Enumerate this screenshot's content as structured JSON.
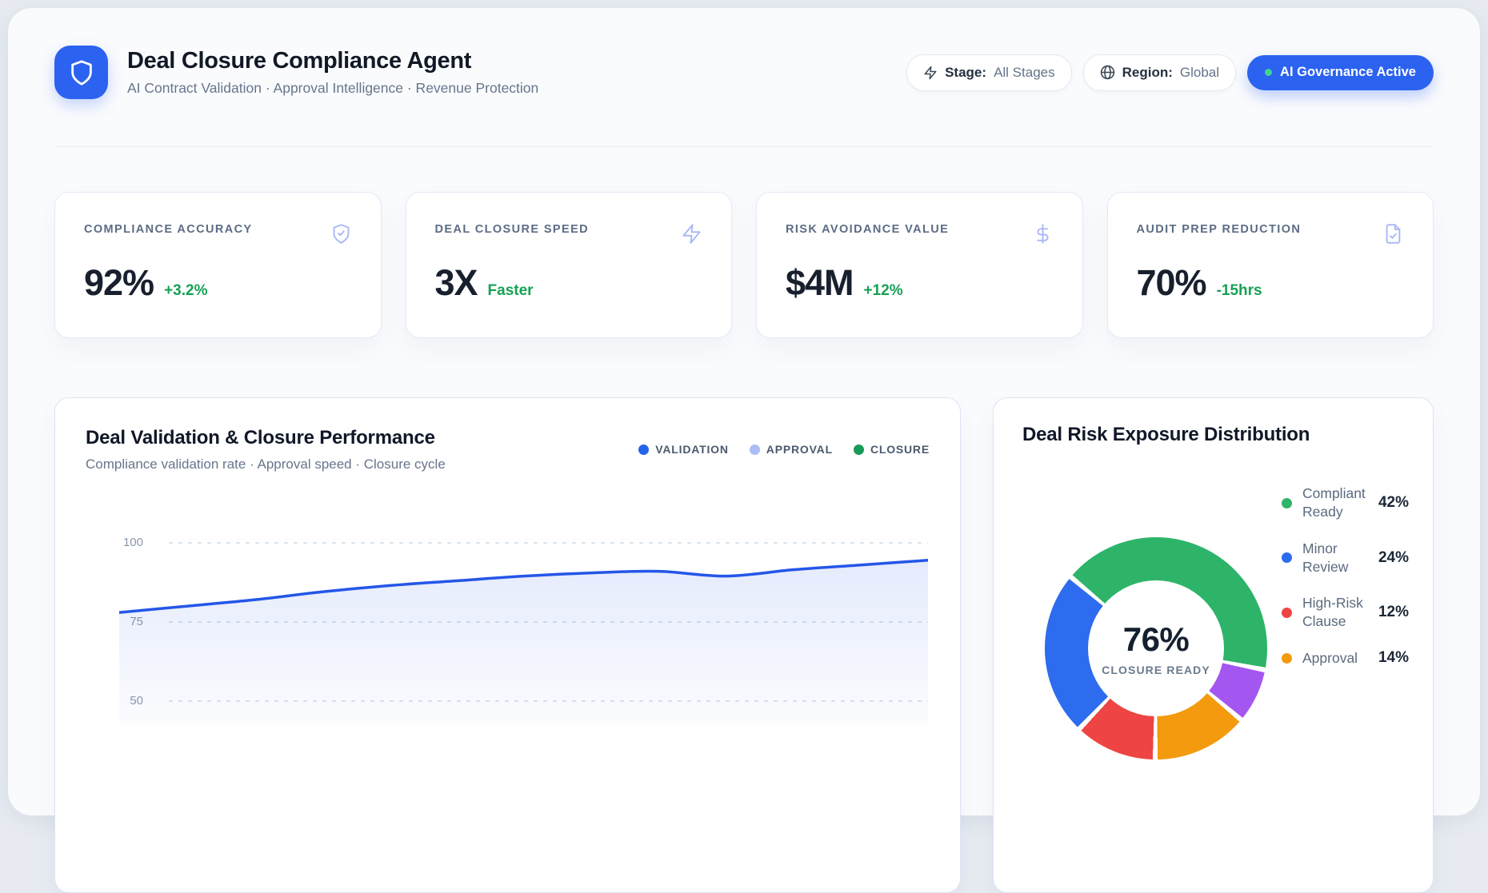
{
  "app": {
    "title": "Deal Closure Compliance Agent",
    "subtitle": "AI Contract Validation · Approval Intelligence · Revenue Protection",
    "accent_blue": "#2b62f0"
  },
  "header_controls": {
    "filters": [
      {
        "icon": "lightning-icon",
        "label": "Stage:",
        "value": "All Stages"
      },
      {
        "icon": "globe-icon",
        "label": "Region:",
        "value": "Global"
      }
    ],
    "status_badge": {
      "label": "AI Governance Active",
      "dot_color": "#42d392",
      "bg": "#2b62f0"
    }
  },
  "kpi_cards": [
    {
      "label": "COMPLIANCE ACCURACY",
      "value": "92%",
      "delta": "+3.2%",
      "icon": "shield-check-icon",
      "delta_color": "#16a155"
    },
    {
      "label": "DEAL CLOSURE SPEED",
      "value": "3X",
      "delta": "Faster",
      "icon": "lightning-icon",
      "delta_color": "#16a155"
    },
    {
      "label": "RISK AVOIDANCE VALUE",
      "value": "$4M",
      "delta": "+12%",
      "icon": "dollar-icon",
      "delta_color": "#16a155"
    },
    {
      "label": "AUDIT PREP REDUCTION",
      "value": "70%",
      "delta": "-15hrs",
      "icon": "document-check-icon",
      "delta_color": "#16a155"
    }
  ],
  "chart_data": [
    {
      "type": "area",
      "title": "Deal Validation & Closure Performance",
      "subtitle": "Compliance validation rate · Approval speed · Closure cycle",
      "legend": [
        {
          "label": "VALIDATION",
          "color": "#2563eb"
        },
        {
          "label": "APPROVAL",
          "color": "#abbdf6"
        },
        {
          "label": "CLOSURE",
          "color": "#189a58"
        }
      ],
      "y_ticks": [
        100,
        75,
        50
      ],
      "ylim_visible": [
        50,
        100
      ],
      "grid": "dashed-horizontal",
      "x_axis_labels_visible": false,
      "series": [
        {
          "name": "VALIDATION",
          "color": "#2456e8",
          "fill": "rgba(42,90,235,0.10)",
          "values": [
            78,
            80,
            82,
            84.5,
            86.5,
            88,
            89.5,
            90.5,
            91,
            89.5,
            91.5,
            93,
            94.5
          ]
        }
      ]
    },
    {
      "type": "pie",
      "donut": true,
      "title": "Deal Risk Exposure Distribution",
      "center_value": "76%",
      "center_label": "CLOSURE READY",
      "rotation_deg": -50,
      "slices": [
        {
          "label": "Compliant Ready",
          "pct": 42,
          "color": "#2db469"
        },
        {
          "label": null,
          "pct": 8,
          "color": "#a457f0"
        },
        {
          "label": "Approval",
          "pct": 14,
          "color": "#f49a0e"
        },
        {
          "label": "High-Risk Clause",
          "pct": 12,
          "color": "#ee4444"
        },
        {
          "label": "Minor Review",
          "pct": 24,
          "color": "#2d6bef"
        }
      ],
      "legend": [
        {
          "lines": [
            "Compliant",
            "Ready"
          ],
          "pct": "42%",
          "color": "#2db469"
        },
        {
          "lines": [
            "Minor",
            "Review"
          ],
          "pct": "24%",
          "color": "#2d6bef"
        },
        {
          "lines": [
            "High-Risk",
            "Clause"
          ],
          "pct": "12%",
          "color": "#ee4444"
        },
        {
          "lines": [
            "Approval"
          ],
          "pct": "14%",
          "color": "#f49a0e"
        }
      ]
    }
  ]
}
